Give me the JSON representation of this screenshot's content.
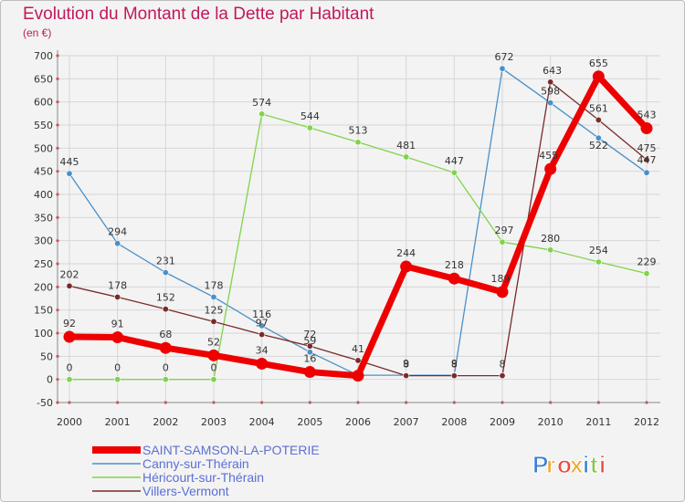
{
  "header": {
    "title": "Evolution du Montant de la Dette par Habitant",
    "subtitle": "(en €)"
  },
  "logo": {
    "text": "Proxiti",
    "colors": [
      "#3a7fd5",
      "#f5a623",
      "#e84c3d",
      "#f5a623",
      "#3a7fd5",
      "#8bc34a",
      "#e84c3d"
    ]
  },
  "chart_data": {
    "type": "line",
    "title": "Evolution du Montant de la Dette par Habitant",
    "subtitle": "(en €)",
    "xlabel": "",
    "ylabel": "",
    "x": [
      "2000",
      "2001",
      "2002",
      "2003",
      "2004",
      "2005",
      "2006",
      "2007",
      "2008",
      "2009",
      "2010",
      "2011",
      "2012"
    ],
    "ylim": [
      -50,
      700
    ],
    "yticks": [
      -50,
      0,
      50,
      100,
      150,
      200,
      250,
      300,
      350,
      400,
      450,
      500,
      550,
      600,
      650,
      700
    ],
    "grid": true,
    "legend_position": "bottom-left",
    "series": [
      {
        "name": "Canny-sur-Thérain",
        "color": "#4a90c8",
        "values": [
          445,
          294,
          231,
          178,
          116,
          59,
          9,
          9,
          9,
          672,
          598,
          522,
          447
        ],
        "labels": [
          "445",
          "294",
          "231",
          "178",
          "116",
          "59",
          "",
          "9",
          "9",
          "672",
          "598",
          "522",
          "447"
        ]
      },
      {
        "name": "Héricourt-sur-Thérain",
        "color": "#7fd44a",
        "values": [
          0,
          0,
          0,
          0,
          574,
          544,
          513,
          481,
          447,
          297,
          280,
          254,
          229
        ],
        "labels": [
          "0",
          "0",
          "0",
          "0",
          "574",
          "544",
          "513",
          "481",
          "447",
          "297",
          "280",
          "254",
          "229"
        ]
      },
      {
        "name": "Villers-Vermont",
        "color": "#7a2a2a",
        "values": [
          202,
          178,
          152,
          125,
          97,
          72,
          41,
          8,
          8,
          8,
          643,
          561,
          475
        ],
        "labels": [
          "202",
          "178",
          "152",
          "125",
          "97",
          "72",
          "41",
          "8",
          "8",
          "8",
          "643",
          "561",
          "475"
        ]
      },
      {
        "name": "SAINT-SAMSON-LA-POTERIE",
        "color": "#ee0000",
        "values": [
          92,
          91,
          68,
          52,
          34,
          16,
          8,
          244,
          218,
          189,
          455,
          655,
          543
        ],
        "labels": [
          "92",
          "91",
          "68",
          "52",
          "34",
          "16",
          "",
          "244",
          "218",
          "189",
          "455",
          "655",
          "543"
        ]
      }
    ],
    "legend_order": [
      "SAINT-SAMSON-LA-POTERIE",
      "Canny-sur-Thérain",
      "Héricourt-sur-Thérain",
      "Villers-Vermont"
    ]
  }
}
